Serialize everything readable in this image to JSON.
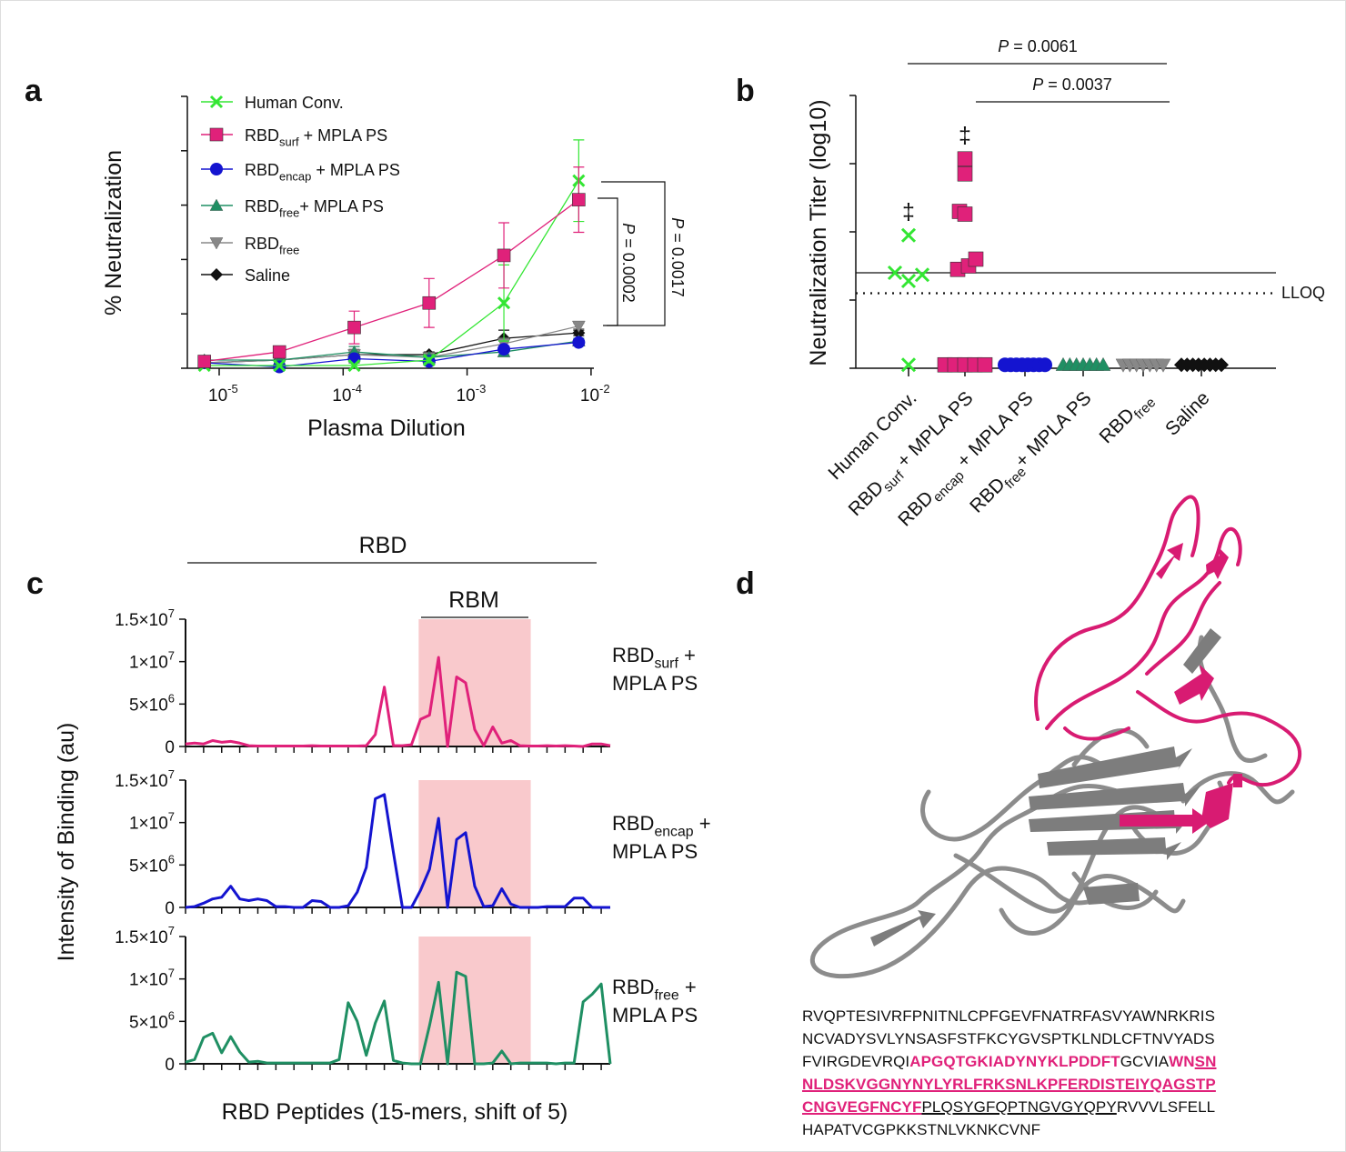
{
  "panels": {
    "a": "a",
    "b": "b",
    "c": "c",
    "d": "d"
  },
  "colors": {
    "human_conv": "#33e633",
    "rbd_surf": "#e0217a",
    "rbd_encap": "#1414d0",
    "rbd_free_mpla": "#1f8f63",
    "rbd_free": "#888888",
    "saline": "#111111",
    "rbm_shade": "#f9c9cc",
    "protein_gray": "#8c8c8c",
    "protein_pink": "#d81b72"
  },
  "chart_data": [
    {
      "type": "line",
      "panel": "a",
      "xlabel": "Plasma Dilution",
      "ylabel": "% Neutralization",
      "xscale": "log",
      "xlim": [
        5e-06,
        0.01
      ],
      "ylim": [
        0,
        100
      ],
      "x_ticks": [
        {
          "base": "10",
          "exp": "-5"
        },
        {
          "base": "10",
          "exp": "-4"
        },
        {
          "base": "10",
          "exp": "-3"
        },
        {
          "base": "10",
          "exp": "-2"
        }
      ],
      "y_ticks": [
        "0",
        "20",
        "40",
        "60",
        "80",
        "100"
      ],
      "legend": "top-left",
      "x": [
        7.6e-06,
        3.05e-05,
        0.000122,
        0.000488,
        0.00195,
        0.0078
      ],
      "series": [
        {
          "key": "human_conv",
          "marker": "x",
          "name": {
            "base": "Human Conv.",
            "sub": "",
            "rest": ""
          },
          "values": [
            1,
            1,
            1,
            3,
            24,
            69
          ],
          "errors": [
            0,
            0,
            0,
            1,
            14,
            15
          ]
        },
        {
          "key": "rbd_surf",
          "marker": "square",
          "name": {
            "base": "RBD",
            "sub": "surf",
            "rest": " + MPLA PS"
          },
          "values": [
            2.5,
            6,
            15,
            24,
            41.5,
            62
          ],
          "errors": [
            1,
            2,
            6,
            9,
            12,
            12
          ]
        },
        {
          "key": "rbd_encap",
          "marker": "circle",
          "name": {
            "base": "RBD",
            "sub": "encap",
            "rest": " + MPLA PS"
          },
          "values": [
            2,
            0.5,
            3.5,
            2.5,
            7,
            9.5
          ],
          "errors": [
            1,
            1,
            1,
            1,
            1,
            1
          ]
        },
        {
          "key": "rbd_free_mpla",
          "marker": "triangle",
          "name": {
            "base": "RBD",
            "sub": "free",
            "rest": "+ MPLA PS"
          },
          "values": [
            3,
            3,
            6,
            4,
            6,
            10
          ],
          "errors": [
            1,
            1,
            2,
            1,
            1,
            1
          ]
        },
        {
          "key": "rbd_free",
          "marker": "triangle-down",
          "name": {
            "base": "RBD",
            "sub": "free",
            "rest": ""
          },
          "values": [
            2,
            3,
            5,
            4,
            9,
            15.5
          ],
          "errors": [
            1,
            1,
            2,
            1,
            2,
            1
          ]
        },
        {
          "key": "saline",
          "marker": "diamond",
          "name": {
            "base": "Saline",
            "sub": "",
            "rest": ""
          },
          "values": [
            2,
            3,
            5,
            5,
            11,
            13
          ],
          "errors": [
            1,
            1,
            3,
            1,
            3,
            1
          ]
        }
      ],
      "annotations": [
        {
          "text": "P = 0.0002",
          "p_italic": "P",
          "rest": " = 0.0002",
          "between": [
            "rbd_surf",
            "rbd_free"
          ]
        },
        {
          "text": "P = 0.0017",
          "p_italic": "P",
          "rest": " = 0.0017",
          "between": [
            "human_conv",
            "rbd_free"
          ]
        }
      ]
    },
    {
      "type": "scatter",
      "panel": "b",
      "ylabel": "Neutralization Titer (log10)",
      "ylim": [
        1,
        5
      ],
      "y_ticks": [
        "1",
        "2",
        "3",
        "4",
        "5"
      ],
      "reference_line": 2.4,
      "lloq": {
        "value": 2.1,
        "label": "LLOQ"
      },
      "categories": [
        {
          "key": "human_conv",
          "marker": "x",
          "label": {
            "base": "Human Conv.",
            "sub": "",
            "rest": ""
          },
          "values": [
            2.4,
            2.28,
            2.95,
            2.37,
            1.05
          ],
          "dagger": "‡"
        },
        {
          "key": "rbd_surf",
          "marker": "square",
          "label": {
            "base": "RBD",
            "sub": "surf",
            "rest": " + MPLA PS"
          },
          "values": [
            4.07,
            3.85,
            3.3,
            3.26,
            2.45,
            2.5,
            2.6,
            1.05,
            1.05,
            1.05,
            1.05,
            1.05
          ],
          "dagger": "‡"
        },
        {
          "key": "rbd_encap",
          "marker": "circle",
          "label": {
            "base": "RBD",
            "sub": "encap",
            "rest": " + MPLA PS"
          },
          "values": [
            1.05,
            1.05,
            1.05,
            1.05,
            1.05,
            1.05,
            1.05,
            1.05
          ],
          "dagger": ""
        },
        {
          "key": "rbd_free_mpla",
          "marker": "triangle",
          "label": {
            "base": "RBD",
            "sub": "free",
            "rest": "+ MPLA PS"
          },
          "values": [
            1.05,
            1.05,
            1.05,
            1.05,
            1.05,
            1.05,
            1.05
          ],
          "dagger": ""
        },
        {
          "key": "rbd_free",
          "marker": "triangle-down",
          "label": {
            "base": "RBD",
            "sub": "free",
            "rest": ""
          },
          "values": [
            1.05,
            1.05,
            1.05,
            1.05,
            1.05,
            1.05,
            1.05
          ],
          "dagger": ""
        },
        {
          "key": "saline",
          "marker": "diamond",
          "label": {
            "base": "Saline",
            "sub": "",
            "rest": ""
          },
          "values": [
            1.05,
            1.05,
            1.05,
            1.05,
            1.05,
            1.05,
            1.05,
            1.05
          ],
          "dagger": ""
        }
      ],
      "comparisons": [
        {
          "p_italic": "P",
          "rest": " = 0.0061",
          "from": "human_conv",
          "to": "rbd_free"
        },
        {
          "p_italic": "P",
          "rest": " = 0.0037",
          "from": "rbd_surf",
          "to": "rbd_free"
        }
      ]
    },
    {
      "type": "line",
      "panel": "c",
      "xlabel": "RBD Peptides (15-mers, shift of 5)",
      "ylabel": "Intensity of Binding (au)",
      "ylim": [
        0,
        15000000.0
      ],
      "y_ticks": [
        {
          "base": "0",
          "exp": ""
        },
        {
          "base": "5×10",
          "exp": "6"
        },
        {
          "base": "1×10",
          "exp": "7"
        },
        {
          "base": "1.5×10",
          "exp": "7"
        }
      ],
      "region_labels": {
        "rbd": "RBD",
        "rbm": "RBM"
      },
      "rbm_peptide_range": [
        26,
        38
      ],
      "series": [
        {
          "key": "rbd_surf",
          "name": {
            "base": "RBD",
            "sub": "surf",
            "rest": " +",
            "line2": "MPLA PS"
          },
          "values_e6": [
            0.3,
            0.4,
            0.3,
            0.7,
            0.5,
            0.6,
            0.4,
            0.1,
            0.05,
            0.05,
            0.05,
            0.05,
            0.05,
            0.05,
            0.1,
            0.05,
            0.05,
            0.05,
            0.05,
            0.05,
            0.1,
            1.4,
            7,
            0.1,
            0.1,
            0.2,
            3.2,
            3.7,
            10.5,
            0,
            8.2,
            7.5,
            2,
            0.1,
            2.3,
            0.4,
            0.7,
            0.1,
            0.05,
            0.05,
            0.1,
            0.05,
            0.1,
            0.05,
            0,
            0.3,
            0.3,
            0.1
          ]
        },
        {
          "key": "rbd_encap",
          "name": {
            "base": "RBD",
            "sub": "encap",
            "rest": " +",
            "line2": "MPLA PS"
          },
          "values_e6": [
            0,
            0.1,
            0.5,
            1,
            1.2,
            2.5,
            1,
            0.8,
            1,
            0.8,
            0.1,
            0.1,
            0,
            0,
            0.8,
            0.7,
            0,
            0,
            0.2,
            1.8,
            4.7,
            12.8,
            13.3,
            6.5,
            0,
            0,
            2,
            4.5,
            10.5,
            0,
            8,
            8.8,
            2.5,
            0.1,
            0.2,
            2.2,
            0.4,
            0,
            0,
            0,
            0.1,
            0.1,
            0.1,
            1.1,
            1.1,
            0,
            0,
            0
          ]
        },
        {
          "key": "rbd_free_mpla",
          "name": {
            "base": "RBD",
            "sub": "free",
            "rest": " +",
            "line2": "MPLA PS"
          },
          "values_e6": [
            0.2,
            0.5,
            3.1,
            3.6,
            1.3,
            3.2,
            1.4,
            0.2,
            0.3,
            0.1,
            0.1,
            0.1,
            0.1,
            0.1,
            0.1,
            0.1,
            0.1,
            0.5,
            7.2,
            5,
            1,
            4.8,
            7.4,
            0.4,
            0.1,
            0,
            0,
            4.5,
            9.6,
            0,
            10.8,
            10.3,
            0,
            0,
            0.1,
            1.5,
            0,
            0.1,
            0.1,
            0.1,
            0.1,
            0,
            0.1,
            0.1,
            7.3,
            8.2,
            9.4,
            0
          ]
        }
      ]
    }
  ],
  "sequence": {
    "lines": [
      [
        {
          "t": "RVQPTESIVRFPNITNLCPFGEVFNATRFASVYAWNRKRIS",
          "hl": false,
          "ul": false
        }
      ],
      [
        {
          "t": "NCVADYSVLYNSASFSTFKCYGVSPTKLNDLCFTNVYADS",
          "hl": false,
          "ul": false
        }
      ],
      [
        {
          "t": "FVIRGDEVRQI",
          "hl": false,
          "ul": false
        },
        {
          "t": "APGQTGKIADYNYKLPDDFT",
          "hl": true,
          "ul": false
        },
        {
          "t": "GCVIA",
          "hl": false,
          "ul": false
        },
        {
          "t": "WN",
          "hl": true,
          "ul": false
        },
        {
          "t": "SN",
          "hl": true,
          "ul": true
        }
      ],
      [
        {
          "t": "NLDSKVGGNYNYLYRLFRKSNLKPFERDISTEIYQAGSTP",
          "hl": true,
          "ul": true
        }
      ],
      [
        {
          "t": "CNGVEGFNCYF",
          "hl": true,
          "ul": true
        },
        {
          "t": "PLQSYGFQPTNGVGYQPY",
          "hl": false,
          "ul": true
        },
        {
          "t": "RVVVLSFELL",
          "hl": false,
          "ul": false
        }
      ],
      [
        {
          "t": "HAPATVCGPKKSTNLVKNKCVNF",
          "hl": false,
          "ul": false
        }
      ]
    ]
  }
}
